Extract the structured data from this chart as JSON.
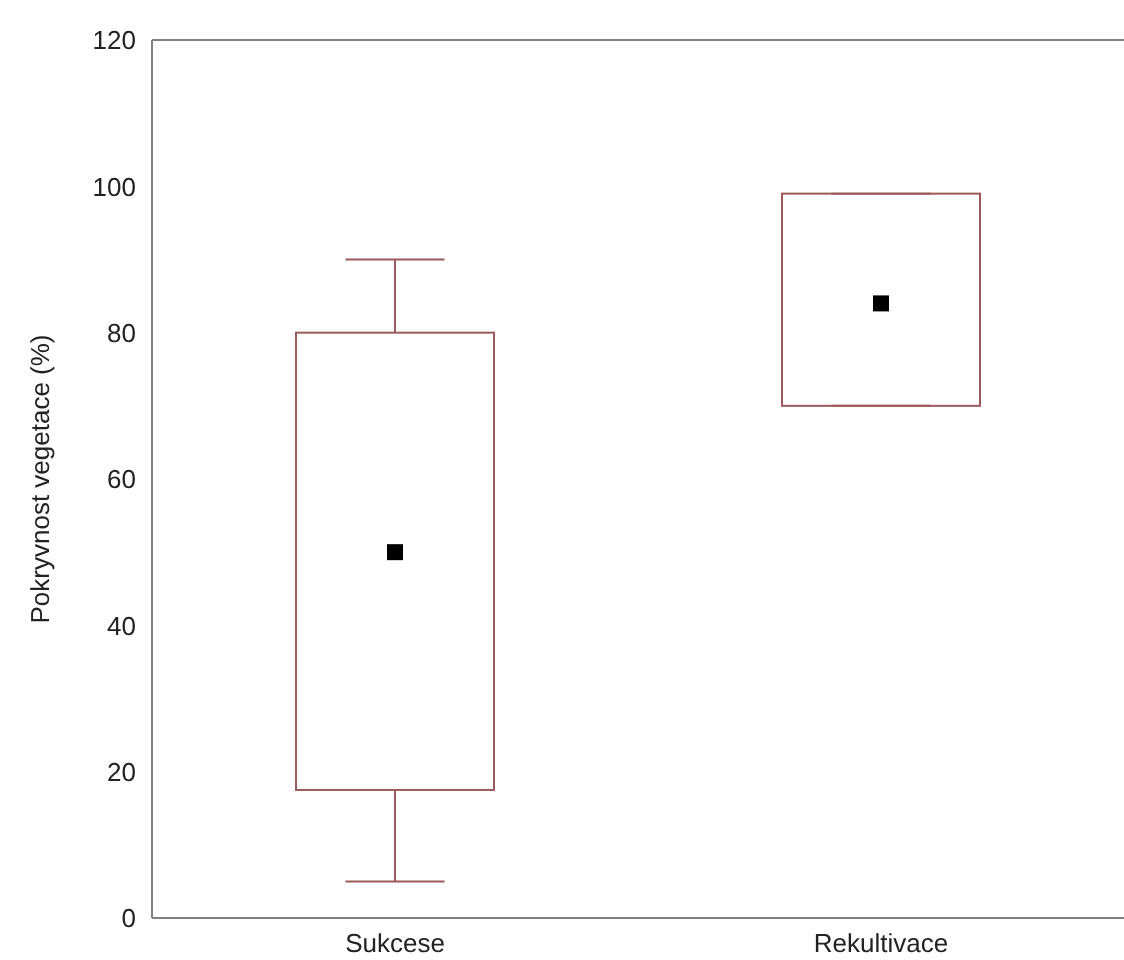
{
  "chart_data": {
    "type": "box",
    "ylabel": "Pokryvnost vegetace (%)",
    "categories": [
      "Sukcese",
      "Rekultivace"
    ],
    "ylim": [
      0,
      120
    ],
    "yticks": [
      0,
      20,
      40,
      60,
      80,
      100,
      120
    ],
    "series": [
      {
        "color": "#9c5a5a",
        "boxes": [
          {
            "low": 5,
            "q1": 17.5,
            "median": 50,
            "q3": 80,
            "high": 90
          },
          {
            "low": 70,
            "q1": 70,
            "median": 84,
            "q3": 99,
            "high": 99
          }
        ]
      }
    ]
  }
}
